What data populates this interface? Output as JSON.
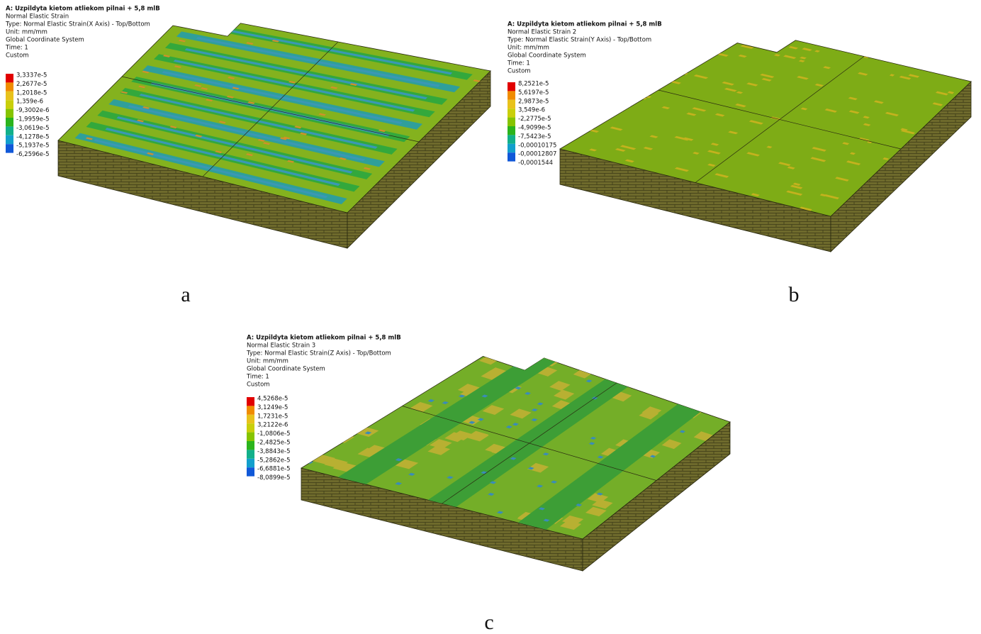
{
  "panels": [
    {
      "header": [
        "A: Uzpildyta kietom atliekom pilnai + 5,8 mlB",
        "Normal Elastic Strain",
        "Type: Normal Elastic Strain(X Axis) - Top/Bottom",
        "Unit: mm/mm",
        "Global Coordinate System",
        "Time: 1",
        "Custom"
      ],
      "legend": [
        "3,3337e-5",
        "2,2677e-5",
        "1,2018e-5",
        "1,359e-6",
        "-9,3002e-6",
        "-1,9959e-5",
        "-3,0619e-5",
        "-4,1278e-5",
        "-5,1937e-5",
        "-6,2596e-5"
      ],
      "label": "a"
    },
    {
      "header": [
        "A: Uzpildyta kietom atliekom pilnai + 5,8 mlB",
        "Normal Elastic Strain 2",
        "Type: Normal Elastic Strain(Y Axis) - Top/Bottom",
        "Unit: mm/mm",
        "Global Coordinate System",
        "Time: 1",
        "Custom"
      ],
      "legend": [
        "8,2521e-5",
        "5,6197e-5",
        "2,9873e-5",
        "3,549e-6",
        "-2,2775e-5",
        "-4,9099e-5",
        "-7,5423e-5",
        "-0,00010175",
        "-0,00012807",
        "-0,0001544"
      ],
      "label": "b"
    },
    {
      "header": [
        "A: Uzpildyta kietom atliekom pilnai + 5,8 mlB",
        "Normal Elastic Strain 3",
        "Type: Normal Elastic Strain(Z Axis) - Top/Bottom",
        "Unit: mm/mm",
        "Global Coordinate System",
        "Time: 1",
        "Custom"
      ],
      "legend": [
        "4,5268e-5",
        "3,1249e-5",
        "1,7231e-5",
        "3,2122e-6",
        "-1,0806e-5",
        "-2,4825e-5",
        "-3,8843e-5",
        "-5,2862e-5",
        "-6,6881e-5",
        "-8,0899e-5"
      ],
      "label": "c"
    }
  ]
}
